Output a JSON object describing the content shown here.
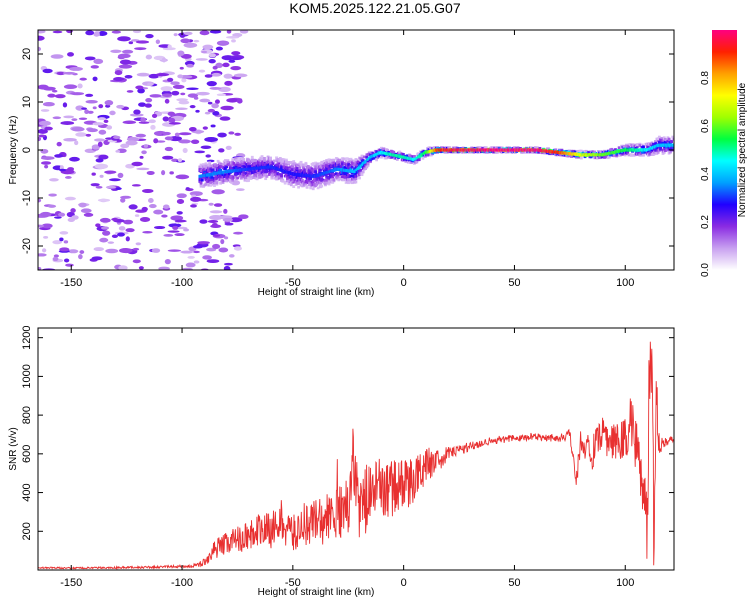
{
  "title": "KOM5.2025.122.21.05.G07",
  "chart_data": [
    {
      "type": "heatmap",
      "title": "KOM5.2025.122.21.05.G07",
      "xlabel": "Height of straight line (km)",
      "ylabel": "Frequency (Hz)",
      "xlim": [
        -165,
        122
      ],
      "ylim": [
        -25,
        25
      ],
      "xticks": [
        -150,
        -100,
        -50,
        0,
        50,
        100
      ],
      "yticks": [
        -20,
        -10,
        0,
        10,
        20
      ],
      "colorbar": {
        "label": "Normalized spectral amplitude",
        "range": [
          0,
          1
        ],
        "ticks": [
          "0.0",
          "0.2",
          "0.4",
          "0.6",
          "0.8"
        ],
        "colormap": [
          "#ffffff",
          "#c8a0f0",
          "#8a2be2",
          "#2000ff",
          "#00a0ff",
          "#00ffff",
          "#00ff40",
          "#a0ff00",
          "#ffff00",
          "#ffa000",
          "#ff2000",
          "#ff0080"
        ]
      },
      "ridge": {
        "x": [
          -92,
          -80,
          -70,
          -60,
          -50,
          -40,
          -30,
          -22,
          -15,
          -10,
          -5,
          0,
          5,
          10,
          15,
          20,
          40,
          60,
          70,
          80,
          90,
          100,
          110,
          115,
          122
        ],
        "freq": [
          -5.5,
          -4.5,
          -4.0,
          -3.5,
          -5.0,
          -5.5,
          -4.0,
          -4.5,
          -1.5,
          -0.5,
          -1.0,
          -1.5,
          -2.0,
          -0.5,
          0.0,
          0.0,
          0.0,
          0.0,
          -0.5,
          -1.0,
          -1.0,
          0.0,
          0.0,
          1.0,
          1.0
        ],
        "amplitude": [
          0.35,
          0.35,
          0.3,
          0.3,
          0.28,
          0.3,
          0.35,
          0.4,
          0.4,
          0.45,
          0.5,
          0.5,
          0.45,
          0.55,
          0.9,
          0.95,
          1.0,
          1.0,
          0.9,
          0.7,
          0.6,
          0.55,
          0.45,
          0.4,
          0.4
        ],
        "spread_hz": [
          3.0,
          3.0,
          3.0,
          3.0,
          3.5,
          3.5,
          3.0,
          3.0,
          1.5,
          1.2,
          1.0,
          1.0,
          1.0,
          1.0,
          0.6,
          0.5,
          0.5,
          0.5,
          0.6,
          0.8,
          0.8,
          1.2,
          1.5,
          2.0,
          2.0
        ]
      },
      "noise_region_x": [
        -165,
        -92
      ]
    },
    {
      "type": "line",
      "xlabel": "Height of straight line (km)",
      "ylabel": "SNR (v/v)",
      "xlim": [
        -165,
        122
      ],
      "ylim": [
        0,
        1250
      ],
      "xticks": [
        -150,
        -100,
        -50,
        0,
        50,
        100
      ],
      "yticks": [
        200,
        400,
        600,
        800,
        1000,
        1200
      ],
      "color": "#e83030",
      "series": [
        {
          "x": [
            -165,
            -150,
            -130,
            -110,
            -95,
            -90,
            -85,
            -80,
            -75,
            -70,
            -65,
            -60,
            -55,
            -50,
            -45,
            -40,
            -35,
            -30,
            -25,
            -23,
            -20,
            -18,
            -15,
            -10,
            -5,
            0,
            5,
            10,
            15,
            20,
            25,
            30,
            40,
            50,
            60,
            70,
            75,
            78,
            80,
            85,
            90,
            95,
            100,
            103,
            105,
            108,
            110,
            111,
            112,
            113,
            114,
            115,
            118,
            122
          ],
          "y": [
            12,
            10,
            12,
            15,
            20,
            40,
            110,
            140,
            160,
            180,
            210,
            200,
            260,
            180,
            240,
            250,
            260,
            280,
            320,
            610,
            300,
            350,
            400,
            420,
            420,
            440,
            470,
            540,
            560,
            600,
            620,
            640,
            670,
            680,
            690,
            680,
            700,
            480,
            670,
            600,
            700,
            650,
            680,
            780,
            620,
            500,
            250,
            1100,
            1200,
            120,
            900,
            650,
            670,
            670
          ],
          "band": [
            4,
            4,
            5,
            6,
            8,
            20,
            50,
            60,
            70,
            80,
            90,
            90,
            110,
            100,
            120,
            130,
            140,
            150,
            160,
            140,
            170,
            180,
            170,
            160,
            150,
            140,
            120,
            90,
            60,
            40,
            30,
            25,
            20,
            20,
            20,
            20,
            30,
            60,
            70,
            90,
            100,
            100,
            120,
            160,
            180,
            200,
            250,
            300,
            300,
            250,
            200,
            60,
            30,
            20
          ]
        }
      ]
    }
  ]
}
